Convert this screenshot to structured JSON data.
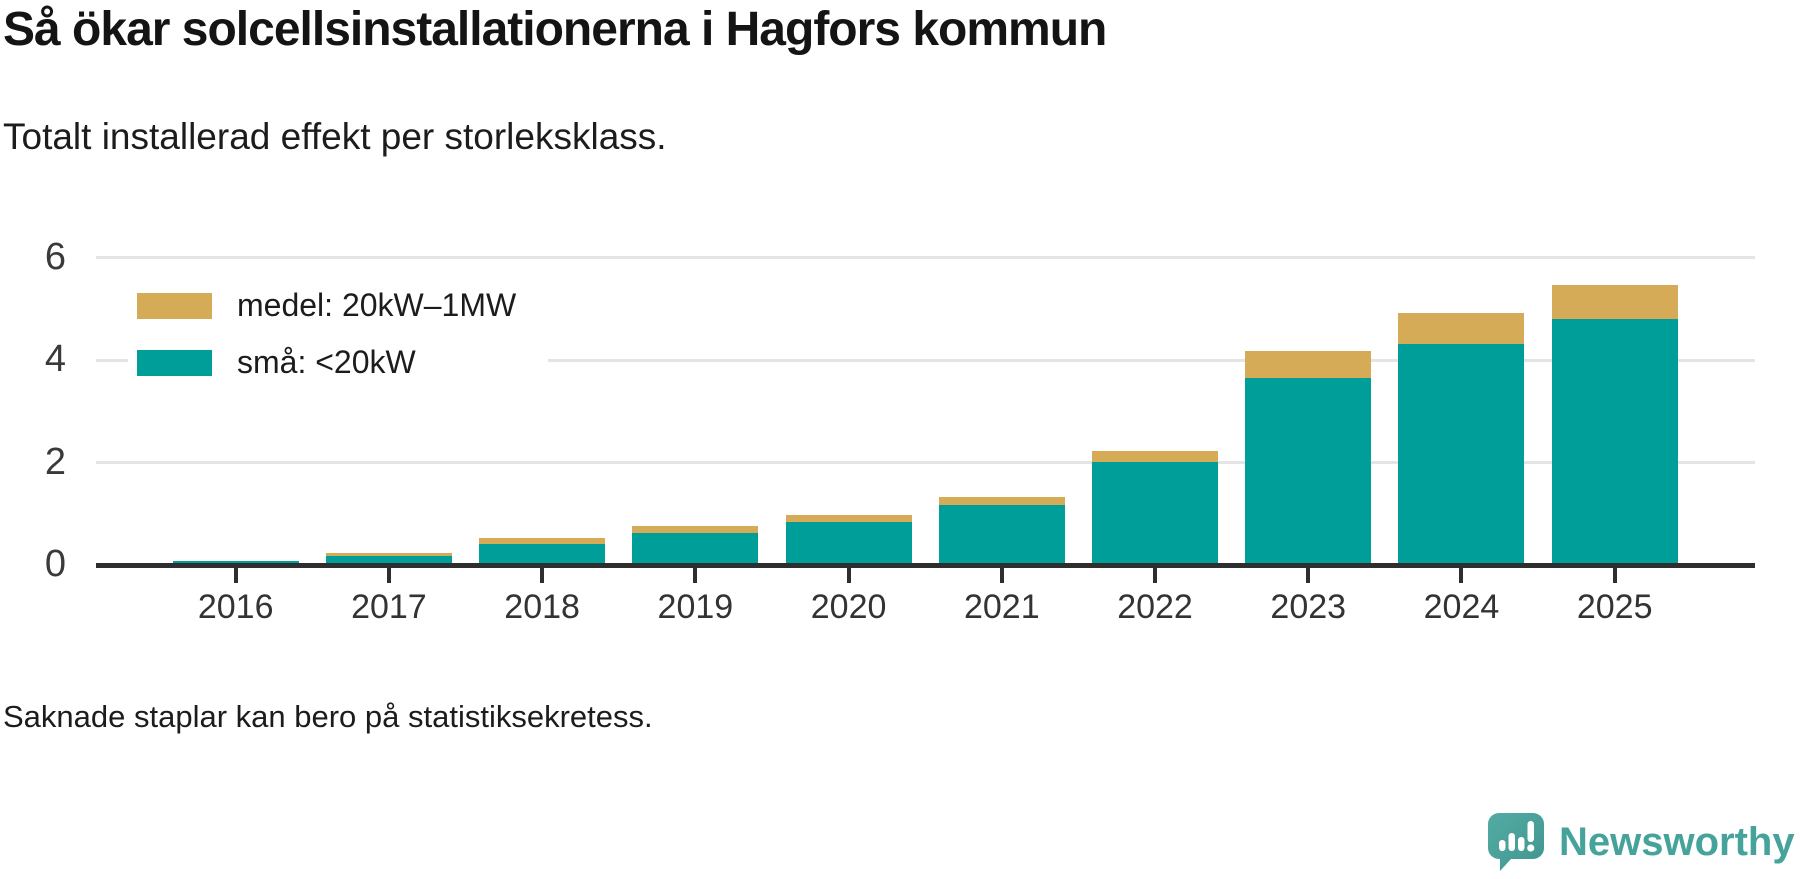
{
  "header": {
    "title": "Så ökar solcellsinstallationerna i Hagfors kommun",
    "subtitle": "Totalt installerad effekt per storleksklass."
  },
  "legend": {
    "items": [
      {
        "label": "medel: 20kW–1MW",
        "color": "#d5ab58"
      },
      {
        "label": "små: <20kW",
        "color": "#009e98"
      }
    ]
  },
  "footer": {
    "note": "Saknade staplar kan bero på statistiksekretess."
  },
  "branding": {
    "name": "Newsworthy",
    "logo_icon": "speech-bubble-bar-chart-icon",
    "accent_color": "#45a39b"
  },
  "chart_data": {
    "type": "bar",
    "stacked": true,
    "title": "Så ökar solcellsinstallationerna i Hagfors kommun",
    "subtitle": "Totalt installerad effekt per storleksklass.",
    "categories": [
      "2016",
      "2017",
      "2018",
      "2019",
      "2020",
      "2021",
      "2022",
      "2023",
      "2024",
      "2025"
    ],
    "series": [
      {
        "name": "små: <20kW",
        "color": "#009e98",
        "values": [
          0.08,
          0.18,
          0.41,
          0.63,
          0.84,
          1.17,
          2.01,
          3.65,
          4.31,
          4.81
        ]
      },
      {
        "name": "medel: 20kW–1MW",
        "color": "#d5ab58",
        "values": [
          0.0,
          0.06,
          0.11,
          0.13,
          0.14,
          0.15,
          0.22,
          0.54,
          0.61,
          0.66
        ]
      }
    ],
    "totals": [
      0.08,
      0.24,
      0.52,
      0.76,
      0.98,
      1.32,
      2.23,
      4.19,
      4.92,
      5.47
    ],
    "xlabel": "",
    "ylabel": "",
    "ylim": [
      0,
      6
    ],
    "yticks": [
      0,
      2,
      4,
      6
    ],
    "grid": true,
    "legend_position": "top-left",
    "note": "Saknade staplar kan bero på statistiksekretess."
  }
}
